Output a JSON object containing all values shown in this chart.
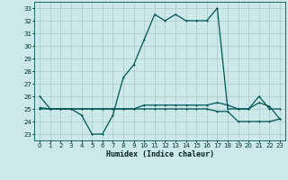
{
  "xlabel": "Humidex (Indice chaleur)",
  "bg_color": "#cce8e8",
  "grid_color": "#aacccc",
  "line_color": "#005555",
  "xlim": [
    -0.5,
    23.5
  ],
  "ylim": [
    22.5,
    33.5
  ],
  "yticks": [
    23,
    24,
    25,
    26,
    27,
    28,
    29,
    30,
    31,
    32,
    33
  ],
  "xticks": [
    0,
    1,
    2,
    3,
    4,
    5,
    6,
    7,
    8,
    9,
    10,
    11,
    12,
    13,
    14,
    15,
    16,
    17,
    18,
    19,
    20,
    21,
    22,
    23
  ],
  "series1_x": [
    0,
    1,
    2,
    3,
    4,
    5,
    6,
    7,
    8,
    9,
    10,
    11,
    12,
    13,
    14,
    15,
    16,
    17,
    18,
    19,
    20,
    21,
    22,
    23
  ],
  "series1_y": [
    26,
    25,
    25,
    25,
    24.5,
    23,
    23,
    24.5,
    27.5,
    28.5,
    30.5,
    32.5,
    32,
    32.5,
    32,
    32,
    32,
    33,
    25,
    25,
    25,
    26,
    25,
    25
  ],
  "series2_x": [
    0,
    1,
    2,
    3,
    4,
    5,
    6,
    7,
    8,
    9,
    10,
    11,
    12,
    13,
    14,
    15,
    16,
    17,
    18,
    19,
    20,
    21,
    22,
    23
  ],
  "series2_y": [
    25,
    25,
    25,
    25,
    25,
    25,
    25,
    25,
    25,
    25,
    25,
    25,
    25,
    25,
    25,
    25,
    25,
    24.8,
    24.8,
    24,
    24,
    24,
    24,
    24.2
  ],
  "series3_x": [
    0,
    1,
    2,
    3,
    4,
    5,
    6,
    7,
    8,
    9,
    10,
    11,
    12,
    13,
    14,
    15,
    16,
    17,
    18,
    19,
    20,
    21,
    22,
    23
  ],
  "series3_y": [
    25.1,
    25,
    25,
    25,
    25,
    25,
    25,
    25,
    25,
    25,
    25.3,
    25.3,
    25.3,
    25.3,
    25.3,
    25.3,
    25.3,
    25.5,
    25.3,
    25,
    25,
    25.5,
    25.2,
    24.2
  ]
}
